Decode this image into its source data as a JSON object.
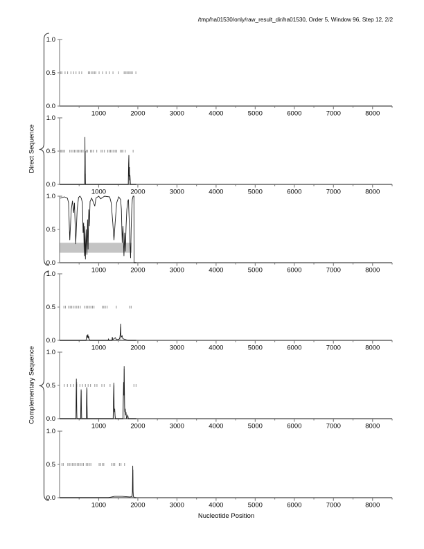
{
  "title": "/tmp/ha01530/only/raw_result_dir/ha01530, Order 5, Window 96, Step 12, 2/2",
  "chart_data": {
    "type": "line",
    "title": "/tmp/ha01530/only/raw_result_dir/ha01530, Order 5, Window 96, Step 12, 2/2",
    "xlabel": "Nucleotide Position",
    "group_labels": {
      "direct": "Direct Sequence",
      "complementary": "Complementary Sequence"
    },
    "xlim": [
      0,
      8500
    ],
    "ylim": [
      0,
      1
    ],
    "xticks": [
      1000,
      2000,
      3000,
      4000,
      5000,
      6000,
      7000,
      8000
    ],
    "minor_xtick_step": 500,
    "yticks": [
      0,
      0.5,
      1
    ],
    "ytick_labels": [
      "0.0",
      "0.5",
      "1.0"
    ],
    "grid": false,
    "legend": "none",
    "colors": {
      "line": "#1c1c1c",
      "marks": "#9b9b9b",
      "band": "#c4c4c4",
      "axis": "#7a7a7a",
      "text": "#000000"
    },
    "subplots": [
      {
        "group": "direct",
        "panel": 1,
        "marks_y": 0.5,
        "marks": [
          30,
          60,
          140,
          205,
          290,
          360,
          420,
          500,
          565,
          735,
          770,
          810,
          850,
          890,
          925,
          1010,
          1100,
          1190,
          1275,
          1365,
          1510,
          1650,
          1685,
          1720,
          1755,
          1790,
          1825,
          1860,
          1950
        ],
        "line": [],
        "columns": [],
        "band": null
      },
      {
        "group": "direct",
        "panel": 2,
        "marks_y": 0.5,
        "marks": [
          30,
          55,
          90,
          130,
          260,
          300,
          340,
          380,
          420,
          455,
          490,
          525,
          560,
          600,
          680,
          715,
          790,
          825,
          865,
          950,
          1060,
          1100,
          1145,
          1230,
          1265,
          1300,
          1340,
          1380,
          1420,
          1460,
          1550,
          1590,
          1620,
          1680,
          1880
        ],
        "line": [
          [
            0,
            0
          ],
          [
            640,
            0
          ],
          [
            646,
            0.3
          ],
          [
            649,
            0.71
          ],
          [
            652,
            0.25
          ],
          [
            655,
            0.5
          ],
          [
            658,
            0.1
          ],
          [
            662,
            0
          ],
          [
            1755,
            0
          ],
          [
            1763,
            0.3
          ],
          [
            1770,
            0.44
          ],
          [
            1776,
            0.12
          ],
          [
            1784,
            0.26
          ],
          [
            1790,
            0.06
          ],
          [
            1800,
            0.14
          ],
          [
            1812,
            0
          ],
          [
            1960,
            0
          ]
        ],
        "columns": [
          [
            644,
            654,
            0.16
          ],
          [
            1760,
            1800,
            0.26
          ]
        ],
        "band": null
      },
      {
        "group": "direct",
        "panel": 3,
        "marks_y": 0.5,
        "marks": [],
        "line": [
          [
            20,
            0.97
          ],
          [
            120,
            0.99
          ],
          [
            200,
            0.97
          ],
          [
            230,
            0.9
          ],
          [
            260,
            0.34
          ],
          [
            300,
            0.8
          ],
          [
            330,
            0.93
          ],
          [
            360,
            0.75
          ],
          [
            380,
            0.9
          ],
          [
            413,
            0.28
          ],
          [
            450,
            0.8
          ],
          [
            485,
            0.98
          ],
          [
            520,
            1.0
          ],
          [
            555,
            0.97
          ],
          [
            585,
            0.9
          ],
          [
            600,
            0.45
          ],
          [
            615,
            0.6
          ],
          [
            630,
            0.1
          ],
          [
            645,
            0.55
          ],
          [
            660,
            0.05
          ],
          [
            680,
            0.5
          ],
          [
            700,
            0.12
          ],
          [
            715,
            0.65
          ],
          [
            730,
            0.2
          ],
          [
            745,
            0.8
          ],
          [
            760,
            0.55
          ],
          [
            780,
            0.92
          ],
          [
            820,
            0.97
          ],
          [
            870,
            0.9
          ],
          [
            900,
            0.85
          ],
          [
            930,
            0.97
          ],
          [
            1000,
            1.0
          ],
          [
            1050,
            0.96
          ],
          [
            1150,
            1.0
          ],
          [
            1280,
            0.99
          ],
          [
            1320,
            0.9
          ],
          [
            1360,
            0.6
          ],
          [
            1390,
            0.34
          ],
          [
            1420,
            0.6
          ],
          [
            1460,
            0.9
          ],
          [
            1510,
            0.99
          ],
          [
            1560,
            0.95
          ],
          [
            1580,
            0.8
          ],
          [
            1600,
            0.3
          ],
          [
            1620,
            0.55
          ],
          [
            1645,
            0.1
          ],
          [
            1665,
            0.45
          ],
          [
            1680,
            0.17
          ],
          [
            1700,
            0.55
          ],
          [
            1720,
            0.8
          ],
          [
            1740,
            0.92
          ],
          [
            1760,
            0.95
          ],
          [
            1785,
            0.55
          ],
          [
            1800,
            0.3
          ],
          [
            1815,
            0.07
          ],
          [
            1830,
            0.5
          ],
          [
            1845,
            0.8
          ],
          [
            1860,
            0.95
          ],
          [
            1880,
            1.0
          ],
          [
            1900,
            1.0
          ],
          [
            1903,
            0
          ],
          [
            1960,
            0
          ]
        ],
        "columns": [],
        "band": {
          "x0": 0,
          "x1": 1845,
          "y0": 0.15,
          "y1": 0.3
        }
      },
      {
        "group": "complementary",
        "panel": 4,
        "marks_y": 0.5,
        "marks": [
          110,
          150,
          230,
          270,
          310,
          350,
          395,
          440,
          485,
          530,
          640,
          680,
          720,
          760,
          800,
          840,
          880,
          1090,
          1130,
          1170,
          1215,
          1450,
          1790,
          1830
        ],
        "line": [
          [
            0,
            0
          ],
          [
            675,
            0
          ],
          [
            690,
            0.05
          ],
          [
            700,
            0.08
          ],
          [
            710,
            0.04
          ],
          [
            722,
            0.09
          ],
          [
            733,
            0.03
          ],
          [
            743,
            0.06
          ],
          [
            757,
            0.02
          ],
          [
            775,
            0
          ],
          [
            1240,
            0
          ],
          [
            1250,
            0.02
          ],
          [
            1262,
            0
          ],
          [
            1338,
            0
          ],
          [
            1348,
            0.05
          ],
          [
            1358,
            0.01
          ],
          [
            1425,
            0.04
          ],
          [
            1442,
            0.02
          ],
          [
            1468,
            0.01
          ],
          [
            1528,
            0.02
          ],
          [
            1543,
            0.05
          ],
          [
            1553,
            0.12
          ],
          [
            1561,
            0.25
          ],
          [
            1568,
            0.08
          ],
          [
            1578,
            0.05
          ],
          [
            1598,
            0.07
          ],
          [
            1614,
            0.03
          ],
          [
            1638,
            0.02
          ],
          [
            1700,
            0.01
          ],
          [
            1750,
            0
          ],
          [
            1960,
            0
          ]
        ],
        "columns": [
          [
            1550,
            1568,
            0.2
          ]
        ],
        "band": null
      },
      {
        "group": "complementary",
        "panel": 5,
        "marks_y": 0.5,
        "marks": [
          120,
          200,
          280,
          360,
          440,
          520,
          585,
          660,
          730,
          790,
          900,
          955,
          1080,
          1140,
          1290,
          1900,
          1955
        ],
        "line": [
          [
            0,
            0
          ],
          [
            418,
            0
          ],
          [
            424,
            0.35
          ],
          [
            429,
            0.6
          ],
          [
            434,
            0.3
          ],
          [
            439,
            0.1
          ],
          [
            445,
            0
          ],
          [
            538,
            0
          ],
          [
            546,
            0.3
          ],
          [
            551,
            0.44
          ],
          [
            557,
            0.15
          ],
          [
            565,
            0
          ],
          [
            683,
            0
          ],
          [
            691,
            0.35
          ],
          [
            696,
            0.47
          ],
          [
            702,
            0.2
          ],
          [
            710,
            0
          ],
          [
            1368,
            0
          ],
          [
            1378,
            0.3
          ],
          [
            1386,
            0.54
          ],
          [
            1393,
            0.2
          ],
          [
            1400,
            0.1
          ],
          [
            1410,
            0.15
          ],
          [
            1418,
            0.05
          ],
          [
            1428,
            0
          ],
          [
            1618,
            0
          ],
          [
            1628,
            0.3
          ],
          [
            1636,
            0.55
          ],
          [
            1643,
            0.35
          ],
          [
            1650,
            0.79
          ],
          [
            1656,
            0.5
          ],
          [
            1662,
            0.2
          ],
          [
            1668,
            0.1
          ],
          [
            1678,
            0.15
          ],
          [
            1688,
            0.05
          ],
          [
            1698,
            0.1
          ],
          [
            1710,
            0
          ],
          [
            1745,
            0.05
          ],
          [
            1758,
            0
          ],
          [
            1960,
            0
          ]
        ],
        "columns": [
          [
            424,
            436,
            0.55
          ],
          [
            544,
            557,
            0.42
          ],
          [
            688,
            703,
            0.44
          ],
          [
            1376,
            1396,
            0.5
          ],
          [
            1638,
            1658,
            0.75
          ]
        ],
        "band": null
      },
      {
        "group": "complementary",
        "panel": 6,
        "marks_y": 0.5,
        "marks": [
          60,
          95,
          210,
          250,
          290,
          330,
          370,
          410,
          450,
          490,
          530,
          570,
          610,
          680,
          720,
          760,
          800,
          1010,
          1050,
          1090,
          1130,
          1330,
          1370,
          1410,
          1530,
          1570,
          1660
        ],
        "line": [
          [
            0,
            0
          ],
          [
            1250,
            0
          ],
          [
            1400,
            0.02
          ],
          [
            1600,
            0.02
          ],
          [
            1800,
            0.01
          ],
          [
            1850,
            0.02
          ],
          [
            1862,
            0.08
          ],
          [
            1870,
            0.48
          ],
          [
            1877,
            0.1
          ],
          [
            1886,
            0.02
          ],
          [
            1915,
            0
          ],
          [
            1960,
            0
          ]
        ],
        "columns": [
          [
            1866,
            1875,
            0.42
          ]
        ],
        "band": null
      }
    ]
  }
}
